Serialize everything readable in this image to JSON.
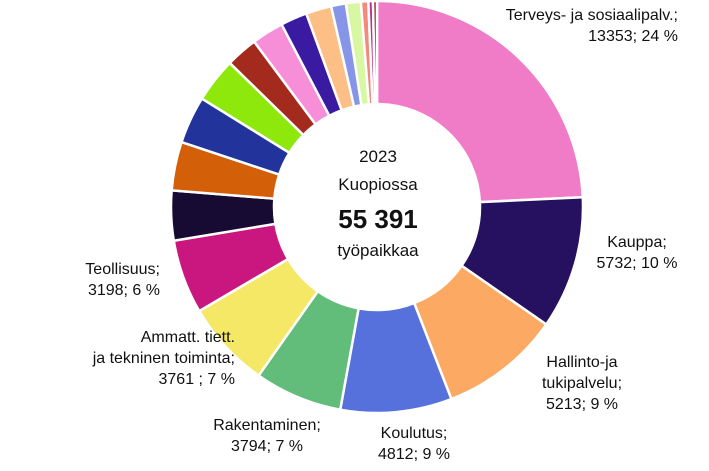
{
  "chart_data": {
    "type": "pie",
    "donut": true,
    "center": {
      "year": "2023",
      "place": "Kuopiossa",
      "total": "55 391",
      "unit": "työpaikkaa"
    },
    "slices": [
      {
        "name": "Terveys- ja sosiaalipalv.",
        "value": 13353,
        "percent": 24,
        "color": "#f07cc8",
        "label_lines": [
          "Terveys- ja sosiaalipalv.;",
          "13353; 24 %"
        ]
      },
      {
        "name": "Kauppa",
        "value": 5732,
        "percent": 10,
        "color": "#251160",
        "label_lines": [
          "Kauppa;",
          "5732; 10 %"
        ]
      },
      {
        "name": "Hallinto-ja tukipalvelu",
        "value": 5213,
        "percent": 9,
        "color": "#fcaa63",
        "label_lines": [
          "Hallinto-ja",
          "tukipalvelu;",
          "5213; 9 %"
        ]
      },
      {
        "name": "Koulutus",
        "value": 4812,
        "percent": 9,
        "color": "#5671dc",
        "label_lines": [
          "Koulutus;",
          "4812; 9 %"
        ]
      },
      {
        "name": "Rakentaminen",
        "value": 3794,
        "percent": 7,
        "color": "#62bd7b",
        "label_lines": [
          "Rakentaminen;",
          "3794; 7 %"
        ]
      },
      {
        "name": "Ammatt. tiett. ja tekninen toiminta",
        "value": 3761,
        "percent": 7,
        "color": "#f5e866",
        "label_lines": [
          "Ammatt. tiett.",
          "ja tekninen toiminta;",
          "3761 ; 7 %"
        ]
      },
      {
        "name": "Teollisuus",
        "value": 3198,
        "percent": 6,
        "color": "#c9177f",
        "label_lines": [
          "Teollisuus;",
          "3198; 6 %"
        ]
      },
      {
        "name": "",
        "value": 2150,
        "color": "#170b33",
        "label_lines": []
      },
      {
        "name": "",
        "value": 2100,
        "color": "#d35f08",
        "label_lines": []
      },
      {
        "name": "",
        "value": 2050,
        "color": "#22349b",
        "label_lines": []
      },
      {
        "name": "",
        "value": 1930,
        "color": "#8ee80c",
        "label_lines": []
      },
      {
        "name": "",
        "value": 1380,
        "color": "#a32a1c",
        "label_lines": []
      },
      {
        "name": "",
        "value": 1380,
        "color": "#f68fd8",
        "label_lines": []
      },
      {
        "name": "",
        "value": 1150,
        "color": "#3a1aa0",
        "label_lines": []
      },
      {
        "name": "",
        "value": 1100,
        "color": "#fdbf86",
        "label_lines": []
      },
      {
        "name": "",
        "value": 640,
        "color": "#8795e8",
        "label_lines": []
      },
      {
        "name": "",
        "value": 640,
        "color": "#d7f7a2",
        "label_lines": []
      },
      {
        "name": "",
        "value": 320,
        "color": "#f48a7c",
        "label_lines": []
      },
      {
        "name": "",
        "value": 200,
        "color": "#bf2e8a",
        "label_lines": []
      },
      {
        "name": "",
        "value": 170,
        "color": "#8b2a2a",
        "label_lines": []
      }
    ]
  }
}
